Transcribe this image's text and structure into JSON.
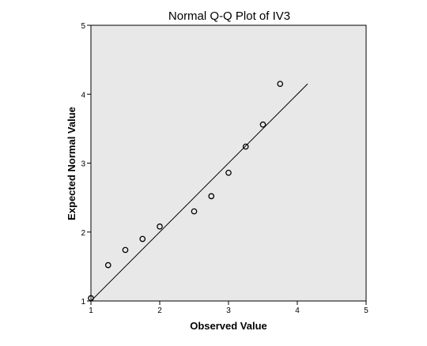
{
  "chart_data": {
    "type": "scatter",
    "title": "Normal Q-Q Plot of IV3",
    "xlabel": "Observed Value",
    "ylabel": "Expected Normal Value",
    "xlim": [
      1,
      5
    ],
    "ylim": [
      1,
      5
    ],
    "xticks": [
      "1",
      "2",
      "3",
      "4",
      "5"
    ],
    "yticks": [
      "1",
      "2",
      "3",
      "4",
      "5"
    ],
    "grid": false,
    "plot_background": "#e8e8e8",
    "marker": "open-circle",
    "points": [
      {
        "x": 1.0,
        "y": 1.04
      },
      {
        "x": 1.25,
        "y": 1.52
      },
      {
        "x": 1.5,
        "y": 1.74
      },
      {
        "x": 1.75,
        "y": 1.9
      },
      {
        "x": 2.0,
        "y": 2.08
      },
      {
        "x": 2.5,
        "y": 2.3
      },
      {
        "x": 2.75,
        "y": 2.52
      },
      {
        "x": 3.0,
        "y": 2.86
      },
      {
        "x": 3.25,
        "y": 3.24
      },
      {
        "x": 3.5,
        "y": 3.56
      },
      {
        "x": 3.75,
        "y": 4.15
      }
    ],
    "reference_line": {
      "x": [
        1.0,
        4.15
      ],
      "y": [
        1.0,
        4.15
      ]
    }
  }
}
